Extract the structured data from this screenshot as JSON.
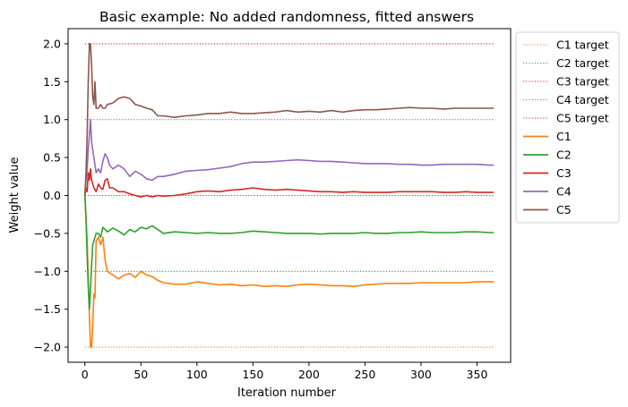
{
  "chart_data": {
    "type": "line",
    "title": "Basic example: No added randomness, fitted answers",
    "xlabel": "Iteration number",
    "ylabel": "Weight value",
    "xlim": [
      -15,
      380
    ],
    "ylim": [
      -2.2,
      2.2
    ],
    "xticks": [
      0,
      50,
      100,
      150,
      200,
      250,
      300,
      350
    ],
    "yticks": [
      -2.0,
      -1.5,
      -1.0,
      -0.5,
      0.0,
      0.5,
      1.0,
      1.5,
      2.0
    ],
    "grid": false,
    "legend_position": "outside-right-top",
    "targets": [
      {
        "name": "C1 target",
        "value": -2.0,
        "color": "#ff7f0e"
      },
      {
        "name": "C2 target",
        "value": -1.0,
        "color": "#2ca02c"
      },
      {
        "name": "C3 target",
        "value": 2.0,
        "color": "#d62728"
      },
      {
        "name": "C4 target",
        "value": 1.0,
        "color": "#9467bd"
      },
      {
        "name": "C5 target",
        "value": 0.0,
        "color": "#d62728"
      }
    ],
    "target_x_range": [
      0,
      365
    ],
    "series": [
      {
        "name": "C1",
        "color": "#ff7f0e",
        "x": [
          0,
          2,
          4,
          5,
          6,
          7,
          8,
          9,
          10,
          12,
          14,
          16,
          18,
          20,
          25,
          30,
          35,
          40,
          45,
          50,
          55,
          60,
          65,
          70,
          80,
          90,
          100,
          110,
          120,
          130,
          140,
          150,
          160,
          170,
          180,
          190,
          200,
          210,
          220,
          230,
          240,
          250,
          260,
          270,
          280,
          290,
          300,
          310,
          320,
          330,
          340,
          350,
          360,
          365
        ],
        "y": [
          0.0,
          -0.6,
          -1.6,
          -2.0,
          -2.0,
          -1.7,
          -1.3,
          -1.35,
          -0.6,
          -0.55,
          -0.65,
          -0.55,
          -0.85,
          -1.0,
          -1.05,
          -1.1,
          -1.05,
          -1.03,
          -1.08,
          -1.0,
          -1.05,
          -1.07,
          -1.12,
          -1.15,
          -1.17,
          -1.17,
          -1.14,
          -1.16,
          -1.18,
          -1.17,
          -1.19,
          -1.18,
          -1.2,
          -1.19,
          -1.2,
          -1.18,
          -1.17,
          -1.18,
          -1.19,
          -1.19,
          -1.2,
          -1.18,
          -1.17,
          -1.16,
          -1.16,
          -1.16,
          -1.15,
          -1.15,
          -1.15,
          -1.15,
          -1.15,
          -1.14,
          -1.14,
          -1.14
        ]
      },
      {
        "name": "C2",
        "color": "#2ca02c",
        "x": [
          0,
          1,
          2,
          3,
          4,
          5,
          6,
          7,
          8,
          10,
          12,
          14,
          16,
          18,
          20,
          25,
          30,
          35,
          40,
          45,
          50,
          55,
          60,
          65,
          70,
          80,
          90,
          100,
          110,
          120,
          130,
          140,
          150,
          160,
          170,
          180,
          190,
          200,
          210,
          220,
          230,
          240,
          250,
          260,
          270,
          280,
          290,
          300,
          310,
          320,
          330,
          340,
          350,
          360,
          365
        ],
        "y": [
          0.0,
          -0.3,
          -0.8,
          -1.2,
          -1.5,
          -1.25,
          -0.9,
          -0.65,
          -0.6,
          -0.5,
          -0.5,
          -0.55,
          -0.42,
          -0.45,
          -0.48,
          -0.43,
          -0.47,
          -0.52,
          -0.45,
          -0.48,
          -0.42,
          -0.44,
          -0.4,
          -0.45,
          -0.5,
          -0.48,
          -0.49,
          -0.5,
          -0.49,
          -0.5,
          -0.5,
          -0.49,
          -0.47,
          -0.48,
          -0.49,
          -0.5,
          -0.5,
          -0.5,
          -0.51,
          -0.5,
          -0.5,
          -0.5,
          -0.49,
          -0.5,
          -0.5,
          -0.49,
          -0.49,
          -0.48,
          -0.49,
          -0.49,
          -0.49,
          -0.48,
          -0.48,
          -0.49,
          -0.49
        ]
      },
      {
        "name": "C3",
        "color": "#d62728",
        "x": [
          0,
          1,
          2,
          3,
          4,
          5,
          6,
          8,
          10,
          12,
          14,
          16,
          18,
          20,
          22,
          25,
          30,
          35,
          40,
          45,
          50,
          55,
          60,
          65,
          70,
          80,
          90,
          100,
          110,
          120,
          130,
          140,
          150,
          160,
          170,
          180,
          190,
          200,
          210,
          220,
          230,
          240,
          250,
          260,
          270,
          280,
          290,
          300,
          310,
          320,
          330,
          340,
          350,
          360,
          365
        ],
        "y": [
          0.0,
          0.1,
          0.05,
          0.3,
          0.2,
          0.35,
          0.2,
          0.1,
          0.05,
          0.15,
          0.1,
          0.08,
          0.2,
          0.22,
          0.1,
          0.1,
          0.05,
          0.05,
          0.02,
          0.0,
          -0.02,
          0.0,
          -0.02,
          0.0,
          -0.01,
          0.0,
          0.02,
          0.05,
          0.06,
          0.05,
          0.07,
          0.08,
          0.1,
          0.08,
          0.07,
          0.08,
          0.07,
          0.06,
          0.05,
          0.05,
          0.04,
          0.05,
          0.04,
          0.04,
          0.04,
          0.05,
          0.05,
          0.05,
          0.05,
          0.04,
          0.04,
          0.05,
          0.04,
          0.04,
          0.04
        ]
      },
      {
        "name": "C4",
        "color": "#9467bd",
        "x": [
          0,
          1,
          2,
          3,
          4,
          5,
          6,
          8,
          10,
          12,
          14,
          16,
          18,
          20,
          22,
          25,
          30,
          35,
          40,
          45,
          50,
          55,
          60,
          65,
          70,
          80,
          90,
          100,
          110,
          120,
          130,
          140,
          150,
          160,
          170,
          180,
          190,
          200,
          210,
          220,
          230,
          240,
          250,
          260,
          270,
          280,
          290,
          300,
          310,
          320,
          330,
          340,
          350,
          360,
          365
        ],
        "y": [
          0.0,
          0.2,
          0.35,
          0.6,
          0.8,
          1.0,
          0.7,
          0.5,
          0.3,
          0.35,
          0.3,
          0.45,
          0.55,
          0.5,
          0.4,
          0.35,
          0.4,
          0.35,
          0.25,
          0.32,
          0.28,
          0.22,
          0.2,
          0.25,
          0.25,
          0.28,
          0.32,
          0.33,
          0.34,
          0.36,
          0.38,
          0.42,
          0.44,
          0.44,
          0.45,
          0.46,
          0.47,
          0.46,
          0.45,
          0.45,
          0.44,
          0.43,
          0.42,
          0.42,
          0.42,
          0.41,
          0.41,
          0.4,
          0.4,
          0.41,
          0.41,
          0.41,
          0.41,
          0.4,
          0.4
        ]
      },
      {
        "name": "C5",
        "color": "#8c564b",
        "x": [
          0,
          1,
          2,
          3,
          4,
          5,
          6,
          7,
          8,
          9,
          10,
          12,
          14,
          16,
          18,
          20,
          25,
          30,
          35,
          40,
          45,
          50,
          55,
          60,
          65,
          70,
          80,
          90,
          100,
          110,
          120,
          130,
          140,
          150,
          160,
          170,
          180,
          190,
          200,
          210,
          220,
          230,
          240,
          250,
          260,
          270,
          280,
          290,
          300,
          310,
          320,
          330,
          340,
          350,
          360,
          365
        ],
        "y": [
          0.0,
          0.3,
          0.8,
          1.5,
          2.0,
          2.0,
          1.7,
          1.3,
          1.2,
          1.5,
          1.15,
          1.15,
          1.2,
          1.15,
          1.15,
          1.2,
          1.22,
          1.28,
          1.3,
          1.28,
          1.2,
          1.18,
          1.15,
          1.13,
          1.05,
          1.05,
          1.03,
          1.05,
          1.06,
          1.08,
          1.08,
          1.1,
          1.08,
          1.08,
          1.09,
          1.1,
          1.12,
          1.1,
          1.11,
          1.1,
          1.12,
          1.1,
          1.12,
          1.13,
          1.13,
          1.14,
          1.15,
          1.16,
          1.15,
          1.15,
          1.14,
          1.15,
          1.15,
          1.15,
          1.15,
          1.15
        ]
      }
    ]
  }
}
